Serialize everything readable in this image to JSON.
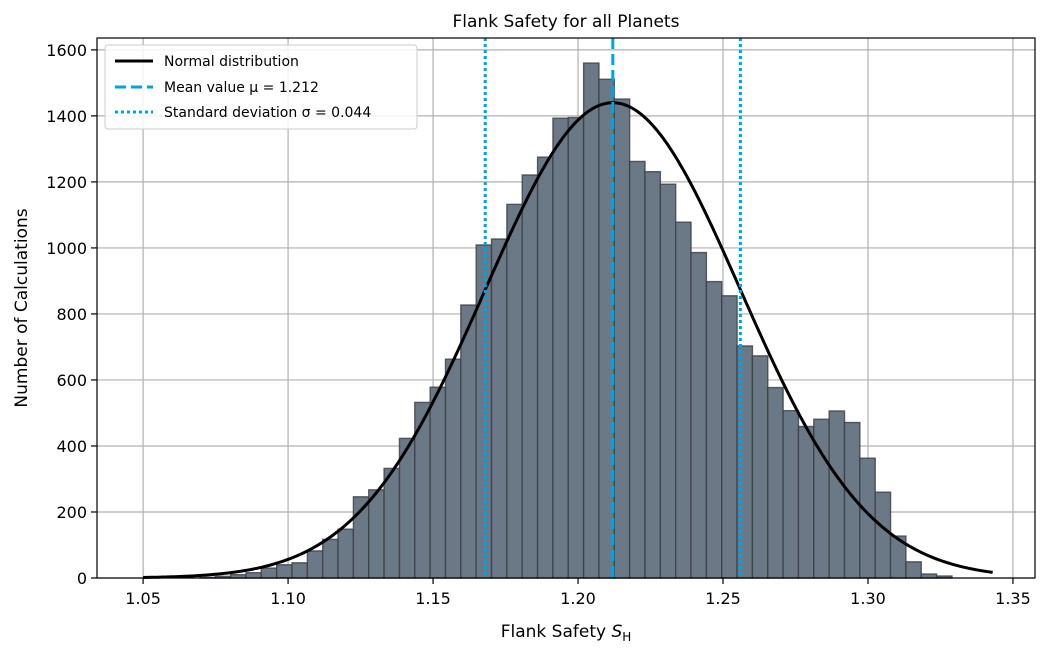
{
  "chart_data": {
    "type": "bar",
    "title": "Flank Safety for all Planets",
    "xlabel": {
      "text": "Flank Safety ",
      "symbol": "S",
      "subscript": "H"
    },
    "ylabel": "Number of Calculations",
    "xlim": [
      1.0341,
      1.3576
    ],
    "ylim": [
      0,
      1636
    ],
    "grid": true,
    "xticks": [
      1.05,
      1.1,
      1.15,
      1.2,
      1.25,
      1.3,
      1.35
    ],
    "xtick_labels": [
      "1.05",
      "1.10",
      "1.15",
      "1.20",
      "1.25",
      "1.30",
      "1.35"
    ],
    "yticks": [
      0,
      200,
      400,
      600,
      800,
      1000,
      1200,
      1400,
      1600
    ],
    "ytick_labels": [
      "0",
      "200",
      "400",
      "600",
      "800",
      "1000",
      "1200",
      "1400",
      "1600"
    ],
    "histogram": {
      "bin_start": 1.0696,
      "bin_width": 0.005293,
      "counts": [
        2,
        5,
        10,
        16,
        30,
        40,
        46,
        82,
        117,
        148,
        246,
        267,
        332,
        423,
        532,
        578,
        663,
        827,
        1009,
        1027,
        1132,
        1221,
        1275,
        1393,
        1395,
        1560,
        1511,
        1451,
        1262,
        1231,
        1193,
        1078,
        986,
        898,
        855,
        703,
        673,
        577,
        507,
        459,
        481,
        506,
        471,
        363,
        260,
        127,
        49,
        12,
        6
      ],
      "color": "#6b7886",
      "edge_color": "#3a3f45"
    },
    "normal_curve": {
      "mean": 1.212,
      "std": 0.044,
      "peak": 1440,
      "x_range": [
        1.05,
        1.343
      ],
      "color": "#000000"
    },
    "mean_line": {
      "value": 1.212,
      "color": "#00a2e8"
    },
    "std_lines": {
      "values": [
        1.168,
        1.256
      ],
      "color": "#00a2e8"
    },
    "legend": {
      "placement": "top-left",
      "entries": [
        {
          "label": "Normal distribution",
          "style": "solid"
        },
        {
          "label": "Mean value μ = 1.212",
          "style": "dashed"
        },
        {
          "label": "Standard deviation σ = 0.044",
          "style": "dotted"
        }
      ]
    }
  }
}
